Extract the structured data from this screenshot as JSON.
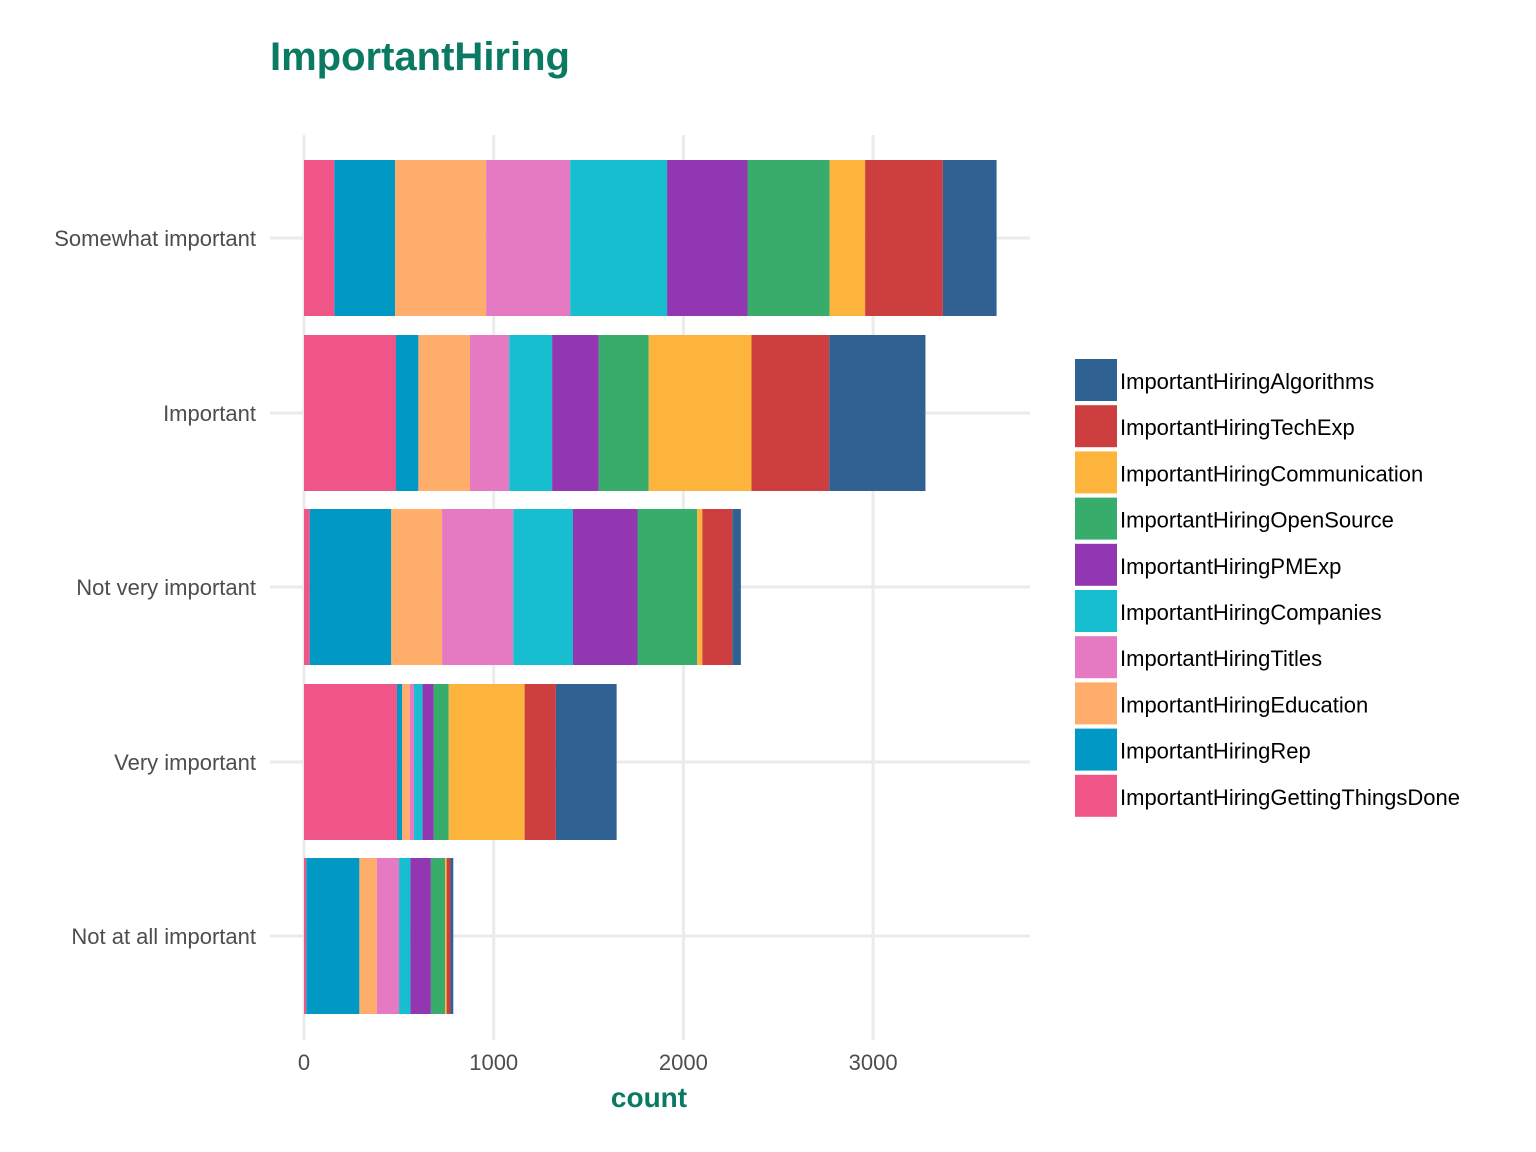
{
  "chart_data": {
    "type": "bar",
    "orientation": "horizontal",
    "stacked": true,
    "title": "ImportantHiring",
    "xlabel": "count",
    "ylabel": "",
    "xlim": [
      0,
      3800
    ],
    "x_ticks": [
      0,
      1000,
      2000,
      3000
    ],
    "x_tick_labels": [
      "0",
      "1000",
      "2000",
      "3000"
    ],
    "grid": true,
    "legend_position": "right",
    "categories": [
      "Somewhat important",
      "Important",
      "Not very important",
      "Very important",
      "Not at all important"
    ],
    "series": [
      {
        "name": "ImportantHiringGettingThingsDone",
        "color": "#ef5586",
        "values": [
          160,
          485,
          30,
          490,
          12
        ]
      },
      {
        "name": "ImportantHiringRep",
        "color": "#0099c6",
        "values": [
          320,
          118,
          430,
          28,
          280
        ]
      },
      {
        "name": "ImportantHiringEducation",
        "color": "#ffad6b",
        "values": [
          480,
          272,
          268,
          40,
          92
        ]
      },
      {
        "name": "ImportantHiringTitles",
        "color": "#e579c2",
        "values": [
          443,
          207,
          375,
          22,
          117
        ]
      },
      {
        "name": "ImportantHiringCompanies",
        "color": "#17becf",
        "values": [
          511,
          226,
          315,
          45,
          60
        ]
      },
      {
        "name": "ImportantHiringPMExp",
        "color": "#9236b1",
        "values": [
          424,
          246,
          340,
          58,
          108
        ]
      },
      {
        "name": "ImportantHiringOpenSource",
        "color": "#38ad6b",
        "values": [
          433,
          263,
          315,
          80,
          75
        ]
      },
      {
        "name": "ImportantHiringCommunication",
        "color": "#fcb43d",
        "values": [
          187,
          542,
          27,
          400,
          8
        ]
      },
      {
        "name": "ImportantHiringTechExp",
        "color": "#cd3f3f",
        "values": [
          410,
          410,
          158,
          165,
          20
        ]
      },
      {
        "name": "ImportantHiringAlgorithms",
        "color": "#2f6292",
        "values": [
          283,
          507,
          45,
          320,
          15
        ]
      }
    ]
  }
}
